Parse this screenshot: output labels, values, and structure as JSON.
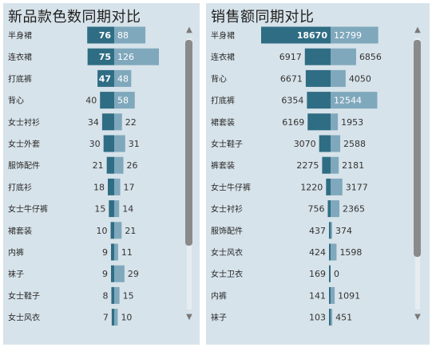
{
  "colors": {
    "current": "#2f6d84",
    "previous": "#7fa8bc",
    "panel": "#d7e3ea"
  },
  "icons": {
    "scroll_up": "triangle-up-icon",
    "scroll_down": "triangle-down-icon"
  },
  "chart_data": [
    {
      "type": "bar",
      "title": "新品款色数同期对比",
      "categories": [
        "半身裙",
        "连衣裙",
        "打底裤",
        "背心",
        "女士衬衫",
        "女士外套",
        "服饰配件",
        "打底衫",
        "女士牛仔裤",
        "裙套装",
        "内裤",
        "袜子",
        "女士鞋子",
        "女士风衣"
      ],
      "series": [
        {
          "values": [
            76,
            75,
            47,
            40,
            34,
            30,
            21,
            18,
            15,
            10,
            9,
            9,
            8,
            7
          ]
        },
        {
          "values": [
            88,
            126,
            48,
            58,
            22,
            31,
            26,
            17,
            14,
            21,
            11,
            29,
            15,
            10
          ]
        }
      ],
      "xlabel": "",
      "ylabel": "",
      "grid": false
    },
    {
      "type": "bar",
      "title": "销售额同期对比",
      "categories": [
        "半身裙",
        "连衣裙",
        "背心",
        "打底裤",
        "裙套装",
        "女士鞋子",
        "裤套装",
        "女士牛仔裤",
        "女士衬衫",
        "服饰配件",
        "女士风衣",
        "女士卫衣",
        "内裤",
        "袜子"
      ],
      "series": [
        {
          "values": [
            18670,
            6917,
            6671,
            6354,
            6169,
            3070,
            2275,
            1220,
            756,
            437,
            424,
            169,
            141,
            103
          ]
        },
        {
          "values": [
            12799,
            6856,
            4050,
            12544,
            1953,
            2588,
            2181,
            3177,
            2365,
            374,
            1598,
            0,
            1091,
            451
          ]
        }
      ],
      "xlabel": "",
      "ylabel": "",
      "grid": false
    }
  ]
}
